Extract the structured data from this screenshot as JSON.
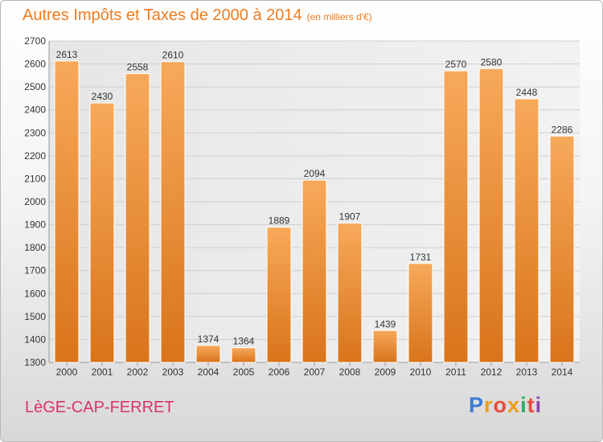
{
  "title": {
    "main": "Autres Impôts et Taxes de 2000 à 2014",
    "unit": "(en milliers d'€)"
  },
  "commune": "LèGE-CAP-FERRET",
  "logo": {
    "letters": [
      "P",
      "r",
      "o",
      "x",
      "i",
      "t",
      "i"
    ],
    "colors": [
      "#3a7bd5",
      "#f39c12",
      "#e74c3c",
      "#f39c12",
      "#27ae60",
      "#e74c3c",
      "#8e44ad"
    ]
  },
  "colors": {
    "bar_light": "#f7a95a",
    "bar_dark": "#d9741a",
    "axis_text": "#333333",
    "grid": "#cfcfcf"
  },
  "chart_data": {
    "type": "bar",
    "title": "Autres Impôts et Taxes de 2000 à 2014",
    "subtitle": "(en milliers d'€)",
    "categories": [
      "2000",
      "2001",
      "2002",
      "2003",
      "2004",
      "2005",
      "2006",
      "2007",
      "2008",
      "2009",
      "2010",
      "2011",
      "2012",
      "2013",
      "2014"
    ],
    "values": [
      2613,
      2430,
      2558,
      2610,
      1374,
      1364,
      1889,
      2094,
      1907,
      1439,
      1731,
      2570,
      2580,
      2448,
      2286
    ],
    "ylim": [
      1300,
      2700
    ],
    "yticks": [
      1300,
      1400,
      1500,
      1600,
      1700,
      1800,
      1900,
      2000,
      2100,
      2200,
      2300,
      2400,
      2500,
      2600,
      2700
    ],
    "grid": true,
    "legend": "none"
  }
}
